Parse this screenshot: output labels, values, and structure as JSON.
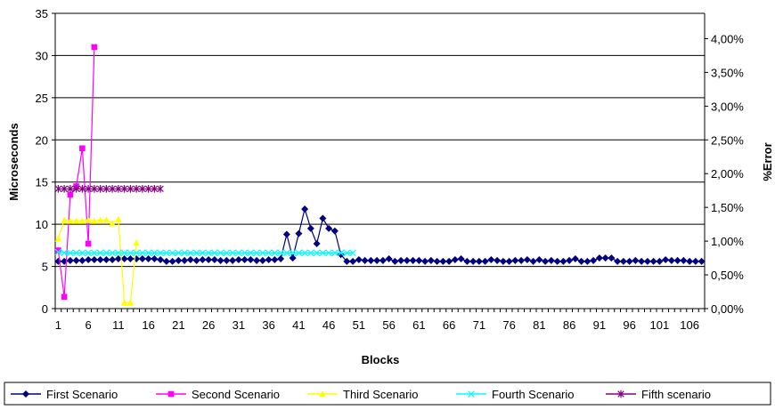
{
  "chart_data": {
    "type": "line",
    "xlabel": "Blocks",
    "ylabel": "Microseconds",
    "y2label": "%Error",
    "ylim": [
      0,
      35
    ],
    "y2lim": [
      0,
      0.04375
    ],
    "y_ticks": [
      "0",
      "5",
      "10",
      "15",
      "20",
      "25",
      "30",
      "35"
    ],
    "y2_ticks": [
      "0,00%",
      "0,50%",
      "1,00%",
      "1,50%",
      "2,00%",
      "2,50%",
      "3,00%",
      "3,50%",
      "4,00%"
    ],
    "x_ticks": [
      "1",
      "6",
      "11",
      "16",
      "21",
      "26",
      "31",
      "36",
      "41",
      "46",
      "51",
      "56",
      "61",
      "66",
      "71",
      "76",
      "81",
      "86",
      "91",
      "96",
      "101",
      "106"
    ],
    "grid": "horizontal",
    "legend_position": "bottom",
    "series": [
      {
        "name": "First Scenario",
        "color": "#000080",
        "marker": "diamond",
        "values": [
          5.6,
          5.6,
          5.7,
          5.7,
          5.7,
          5.8,
          5.8,
          5.8,
          5.8,
          5.8,
          5.9,
          5.9,
          5.9,
          5.9,
          5.9,
          5.9,
          5.9,
          5.8,
          5.6,
          5.6,
          5.7,
          5.7,
          5.8,
          5.7,
          5.8,
          5.8,
          5.8,
          5.7,
          5.7,
          5.7,
          5.8,
          5.8,
          5.8,
          5.7,
          5.7,
          5.8,
          5.8,
          5.9,
          8.8,
          6.0,
          8.9,
          11.8,
          9.5,
          7.7,
          10.7,
          9.5,
          9.2,
          6.4,
          5.6,
          5.6,
          5.8,
          5.7,
          5.7,
          5.7,
          5.7,
          5.9,
          5.6,
          5.7,
          5.7,
          5.7,
          5.7,
          5.6,
          5.7,
          5.6,
          5.6,
          5.6,
          5.8,
          5.9,
          5.6,
          5.6,
          5.6,
          5.6,
          5.8,
          5.7,
          5.6,
          5.6,
          5.7,
          5.7,
          5.8,
          5.6,
          5.8,
          5.6,
          5.7,
          5.6,
          5.6,
          5.7,
          5.9,
          5.6,
          5.6,
          5.7,
          6.0,
          6.0,
          6.0,
          5.6,
          5.6,
          5.6,
          5.7,
          5.6,
          5.6,
          5.6,
          5.6,
          5.8,
          5.7,
          5.7,
          5.7,
          5.6,
          5.6,
          5.6
        ]
      },
      {
        "name": "Second Scenario",
        "color": "#FF00FF",
        "marker": "square",
        "values": [
          6.9,
          1.4,
          13.5,
          14.5,
          19.0,
          7.7,
          31.0
        ]
      },
      {
        "name": "Third Scenario",
        "color": "#FFFF00",
        "marker": "triangle",
        "values": [
          8.3,
          10.5,
          10.4,
          10.4,
          10.4,
          10.5,
          10.4,
          10.5,
          10.5,
          10.1,
          10.6,
          0.7,
          0.7,
          7.8
        ]
      },
      {
        "name": "Fourth Scenario",
        "color": "#00FFFF",
        "marker": "x",
        "values": [
          6.7,
          6.6,
          6.6,
          6.6,
          6.6,
          6.6,
          6.6,
          6.6,
          6.6,
          6.6,
          6.6,
          6.6,
          6.6,
          6.6,
          6.6,
          6.6,
          6.6,
          6.6,
          6.6,
          6.6,
          6.6,
          6.6,
          6.6,
          6.6,
          6.6,
          6.6,
          6.6,
          6.6,
          6.6,
          6.6,
          6.6,
          6.6,
          6.6,
          6.6,
          6.6,
          6.6,
          6.6,
          6.6,
          6.6,
          6.6,
          6.6,
          6.6,
          6.6,
          6.6,
          6.6,
          6.6,
          6.6,
          6.6,
          6.6,
          6.6
        ]
      },
      {
        "name": "Fifth scenario",
        "color": "#800080",
        "marker": "asterisk",
        "values": [
          14.2,
          14.2,
          14.2,
          14.2,
          14.2,
          14.2,
          14.2,
          14.2,
          14.2,
          14.2,
          14.2,
          14.2,
          14.2,
          14.2,
          14.2,
          14.2,
          14.2,
          14.2
        ]
      }
    ]
  }
}
